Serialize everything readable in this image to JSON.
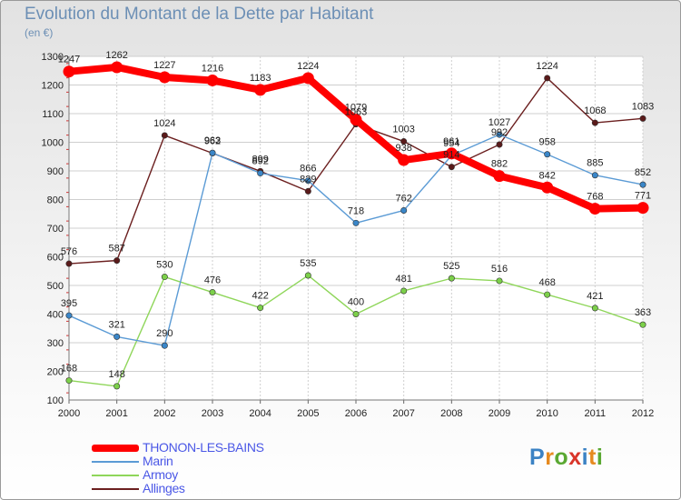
{
  "header": {
    "title": "Evolution du Montant de la Dette par Habitant",
    "unit": "(en €)"
  },
  "logo": {
    "text": "Proxiti",
    "letter_colors": [
      "#3b82c4",
      "#e68a1f",
      "#5aa832",
      "#d9352a",
      "#3b82c4",
      "#e68a1f",
      "#5aa832"
    ]
  },
  "chart_data": {
    "type": "line",
    "title": "Evolution du Montant de la Dette par Habitant",
    "subtitle": "(en €)",
    "xlabel": "",
    "ylabel": "",
    "x": [
      "2000",
      "2001",
      "2002",
      "2003",
      "2004",
      "2005",
      "2006",
      "2007",
      "2008",
      "2009",
      "2010",
      "2011",
      "2012"
    ],
    "ylim": [
      100,
      1300
    ],
    "yticks": [
      100,
      200,
      300,
      400,
      500,
      600,
      700,
      800,
      900,
      1000,
      1100,
      1200,
      1300
    ],
    "grid": true,
    "legend_position": "bottom-left",
    "series": [
      {
        "name": "THONON-LES-BAINS",
        "color": "#ff0000",
        "values": [
          1247,
          1262,
          1227,
          1216,
          1183,
          1224,
          1079,
          938,
          961,
          882,
          842,
          768,
          771
        ]
      },
      {
        "name": "Marin",
        "color": "#5b9bd5",
        "values": [
          395,
          321,
          290,
          963,
          892,
          866,
          718,
          762,
          954,
          1027,
          958,
          885,
          852
        ]
      },
      {
        "name": "Armoy",
        "color": "#8fd65a",
        "values": [
          168,
          148,
          530,
          476,
          422,
          535,
          400,
          481,
          525,
          516,
          468,
          421,
          363
        ]
      },
      {
        "name": "Allinges",
        "color": "#6b1f1f",
        "values": [
          576,
          587,
          1024,
          962,
          899,
          829,
          1063,
          1003,
          914,
          992,
          1224,
          1068,
          1083
        ]
      }
    ]
  }
}
